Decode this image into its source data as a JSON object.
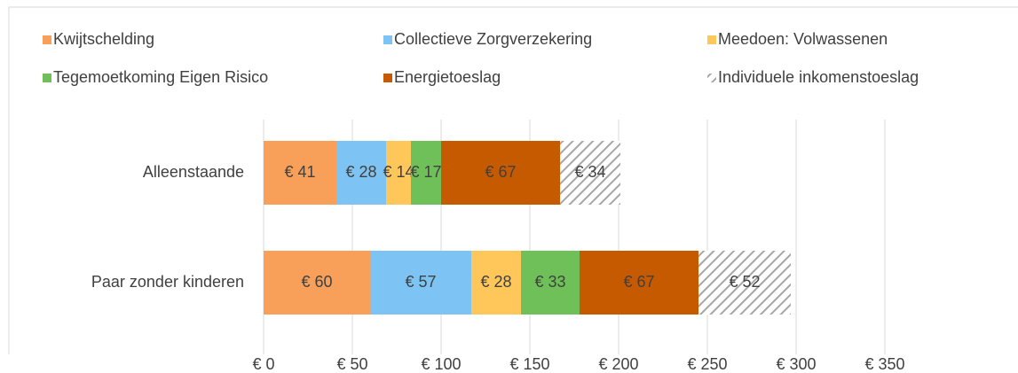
{
  "chart_data": {
    "type": "stacked_barh",
    "categories": [
      "Alleenstaande",
      "Paar zonder kinderen"
    ],
    "series": [
      {
        "name": "Kwijtschelding",
        "color": "#f8a05a",
        "values": [
          41,
          60
        ],
        "value_labels": [
          "€ 41",
          "€ 60"
        ]
      },
      {
        "name": "Collectieve Zorgverzekering",
        "color": "#7dc4f4",
        "values": [
          28,
          57
        ],
        "value_labels": [
          "€ 28",
          "€ 57"
        ]
      },
      {
        "name": "Meedoen: Volwassenen",
        "color": "#ffc75a",
        "values": [
          14,
          28
        ],
        "value_labels": [
          "€ 14",
          "€ 28"
        ]
      },
      {
        "name": "Tegemoetkoming Eigen Risico",
        "color": "#70c05a",
        "values": [
          17,
          33
        ],
        "value_labels": [
          "€ 17",
          "€ 33"
        ]
      },
      {
        "name": "Energietoeslag",
        "color": "#c55a00",
        "values": [
          67,
          67
        ],
        "value_labels": [
          "€ 67",
          "€ 67"
        ]
      },
      {
        "name": "Individuele inkomenstoeslag",
        "color": "#a6a6a6",
        "hatch": true,
        "values": [
          34,
          52
        ],
        "value_labels": [
          "€ 34",
          "€ 52"
        ]
      }
    ],
    "xlim": [
      0,
      350
    ],
    "xticks": [
      {
        "value": 0,
        "label": "€ 0"
      },
      {
        "value": 50,
        "label": "€ 50"
      },
      {
        "value": 100,
        "label": "€ 100"
      },
      {
        "value": 150,
        "label": "€ 150"
      },
      {
        "value": 200,
        "label": "€ 200"
      },
      {
        "value": 250,
        "label": "€ 250"
      },
      {
        "value": 300,
        "label": "€ 300"
      },
      {
        "value": 350,
        "label": "€ 350"
      }
    ],
    "grid": true,
    "legend": "top"
  }
}
